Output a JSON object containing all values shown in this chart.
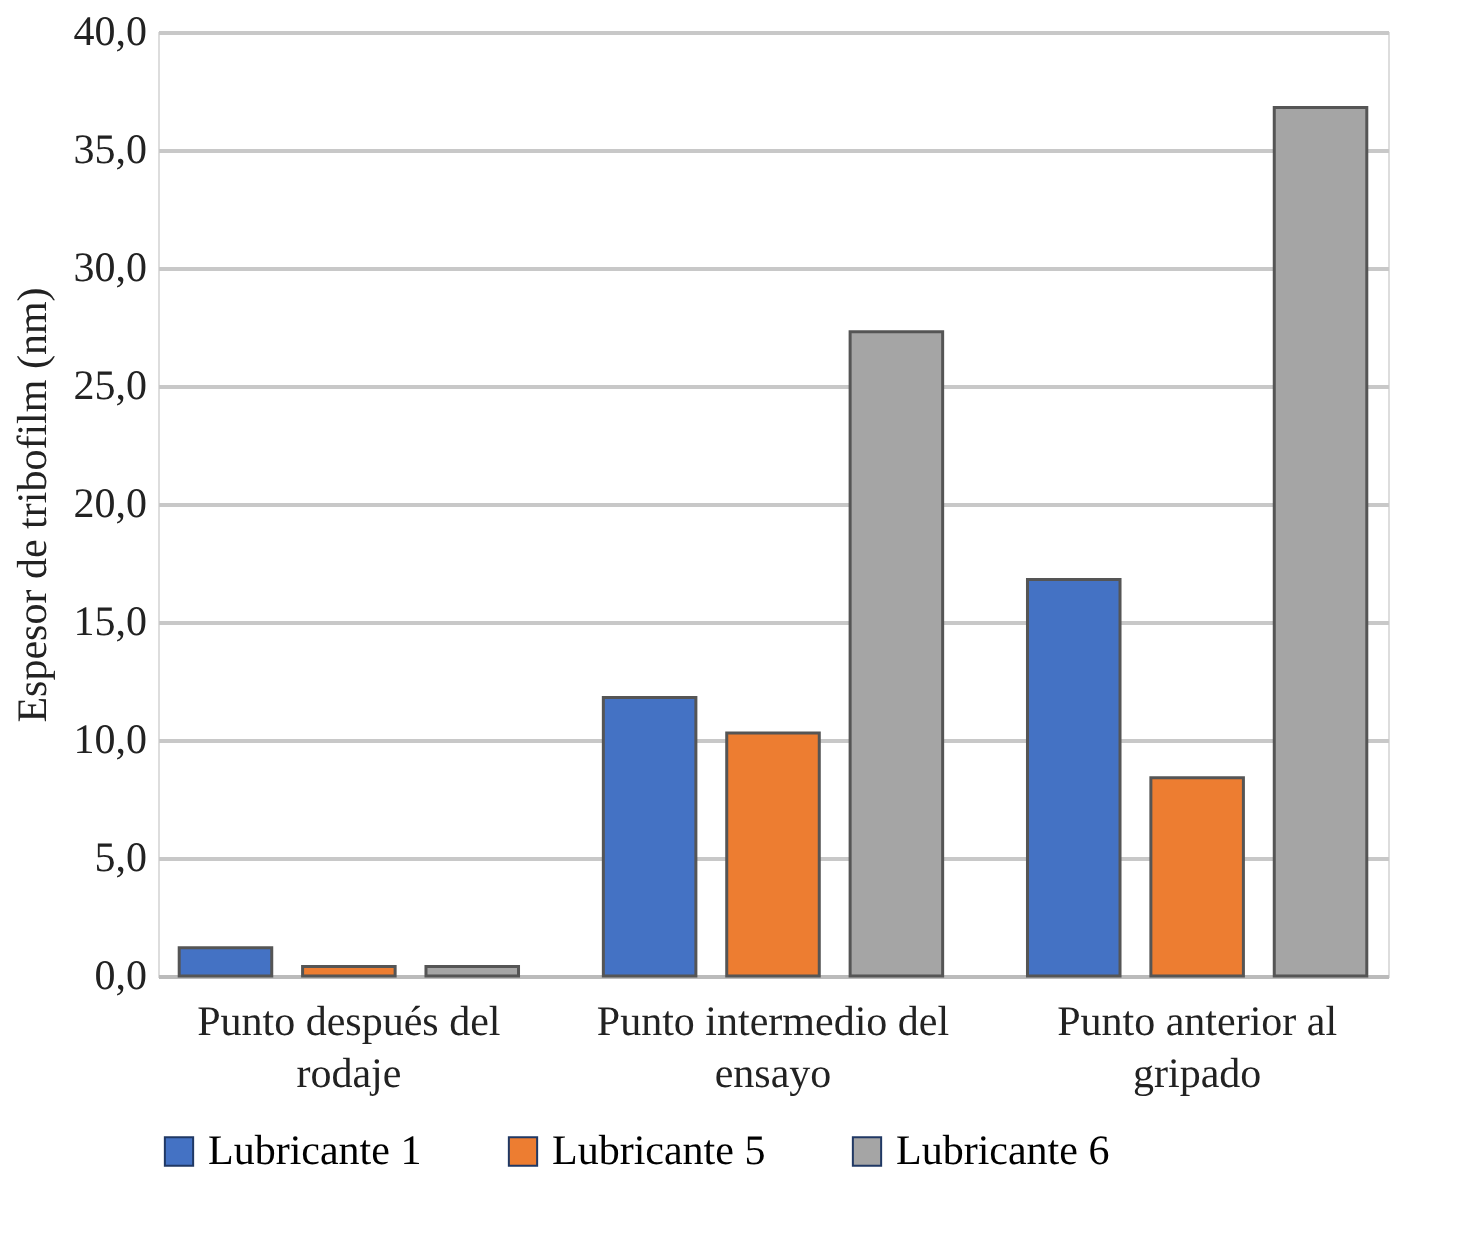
{
  "chart_data": {
    "type": "bar",
    "ylabel": "Espesor de tribofilm (nm)",
    "categories": [
      "Punto después del rodaje",
      "Punto intermedio del ensayo",
      "Punto anterior al gripado"
    ],
    "series": [
      {
        "name": "Lubricante 1",
        "color": "#4472c4",
        "values": [
          1.2,
          11.8,
          16.8
        ]
      },
      {
        "name": "Lubricante 5",
        "color": "#ed7d31",
        "values": [
          0.4,
          10.3,
          8.4
        ]
      },
      {
        "name": "Lubricante 6",
        "color": "#a5a5a5",
        "values": [
          0.4,
          27.3,
          36.8
        ]
      }
    ],
    "ylim": [
      0,
      40
    ],
    "yticks": [
      {
        "value": 0,
        "label": "0,0"
      },
      {
        "value": 5,
        "label": "5,0"
      },
      {
        "value": 10,
        "label": "10,0"
      },
      {
        "value": 15,
        "label": "15,0"
      },
      {
        "value": 20,
        "label": "20,0"
      },
      {
        "value": 25,
        "label": "25,0"
      },
      {
        "value": 30,
        "label": "30,0"
      },
      {
        "value": 35,
        "label": "35,0"
      },
      {
        "value": 40,
        "label": "40,0"
      }
    ],
    "grid": "y",
    "legend": "bottom"
  }
}
